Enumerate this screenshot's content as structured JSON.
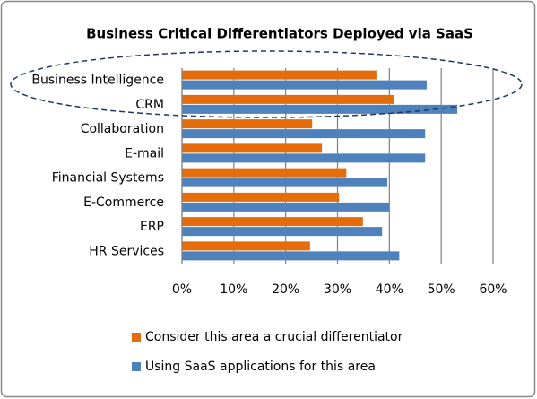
{
  "chart_data": {
    "type": "bar",
    "orientation": "horizontal",
    "title": "Business Critical Differentiators Deployed via SaaS",
    "categories": [
      "Business Intelligence",
      "CRM",
      "Collaboration",
      "E-mail",
      "Financial Systems",
      "E-Commerce",
      "ERP",
      "HR Services"
    ],
    "series": [
      {
        "name": "Consider this area a crucial differentiator",
        "color": "#e46c0a",
        "values": [
          37.5,
          40.8,
          25.1,
          27,
          31.7,
          30.3,
          34.9,
          24.7
        ]
      },
      {
        "name": "Using SaaS applications for this area",
        "color": "#4f81bd",
        "values": [
          47.2,
          53.1,
          46.9,
          46.9,
          39.6,
          40,
          38.6,
          41.9
        ]
      }
    ],
    "xlim": [
      0,
      60
    ],
    "xticks": [
      {
        "value": 0,
        "label": "0%"
      },
      {
        "value": 10,
        "label": "10%"
      },
      {
        "value": 20,
        "label": "20%"
      },
      {
        "value": 30,
        "label": "30%"
      },
      {
        "value": 40,
        "label": "40%"
      },
      {
        "value": 50,
        "label": "50%"
      },
      {
        "value": 60,
        "label": "60%"
      }
    ],
    "grid": true
  }
}
